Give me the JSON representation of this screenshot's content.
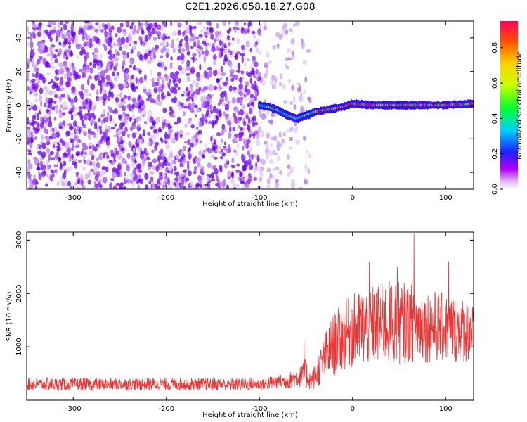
{
  "title": "C2E1.2026.058.18.27.G08",
  "chart_data": [
    {
      "type": "heatmap",
      "name": "spectrogram",
      "xlabel": "Height of straight line (km)",
      "ylabel": "Frequency (Hz)",
      "xlim": [
        -350,
        130
      ],
      "ylim": [
        -50,
        50
      ],
      "xticks": [
        -300,
        -200,
        -100,
        0,
        100
      ],
      "yticks": [
        -40,
        -20,
        0,
        20,
        40
      ],
      "noise_region_km": [
        -350,
        -45
      ],
      "signal_line": {
        "x": [
          -100,
          -90,
          -80,
          -70,
          -60,
          -50,
          -40,
          -30,
          -20,
          -10,
          0,
          20,
          40,
          60,
          80,
          100,
          130
        ],
        "y": [
          0,
          -1,
          -3,
          -6,
          -8,
          -6,
          -4,
          -3,
          -2,
          -1,
          1,
          0,
          0,
          0,
          0,
          0,
          1
        ]
      },
      "colorbar": {
        "label": "Normalized spectral amplitude",
        "range": [
          0,
          0.95
        ],
        "ticks": [
          0,
          0.2,
          0.4,
          0.6,
          0.8
        ]
      }
    },
    {
      "type": "line",
      "name": "snr",
      "xlabel": "Height of straight line (km)",
      "ylabel": "SNR (10 * v/v)",
      "xlim": [
        -350,
        130
      ],
      "ylim": [
        0,
        3150
      ],
      "xticks": [
        -300,
        -200,
        -100,
        0,
        100
      ],
      "yticks": [
        1000,
        2000,
        3000
      ],
      "color": "#ee3333",
      "envelope": {
        "x": [
          -350,
          -300,
          -200,
          -100,
          -70,
          -55,
          -50,
          -45,
          -40,
          -30,
          -20,
          -10,
          0,
          20,
          40,
          60,
          80,
          100,
          130
        ],
        "center": [
          300,
          300,
          300,
          300,
          360,
          450,
          500,
          350,
          450,
          800,
          1050,
          1200,
          1300,
          1400,
          1450,
          1450,
          1400,
          1350,
          1300
        ],
        "amplitude": [
          120,
          120,
          120,
          120,
          150,
          200,
          300,
          150,
          250,
          450,
          600,
          650,
          700,
          750,
          800,
          750,
          700,
          650,
          600
        ]
      },
      "peaks": [
        {
          "x": -52,
          "y": 1100
        },
        {
          "x": 8,
          "y": 1900
        },
        {
          "x": 18,
          "y": 2600
        },
        {
          "x": 48,
          "y": 2500
        },
        {
          "x": 66,
          "y": 3130
        },
        {
          "x": 103,
          "y": 2600
        }
      ]
    }
  ]
}
